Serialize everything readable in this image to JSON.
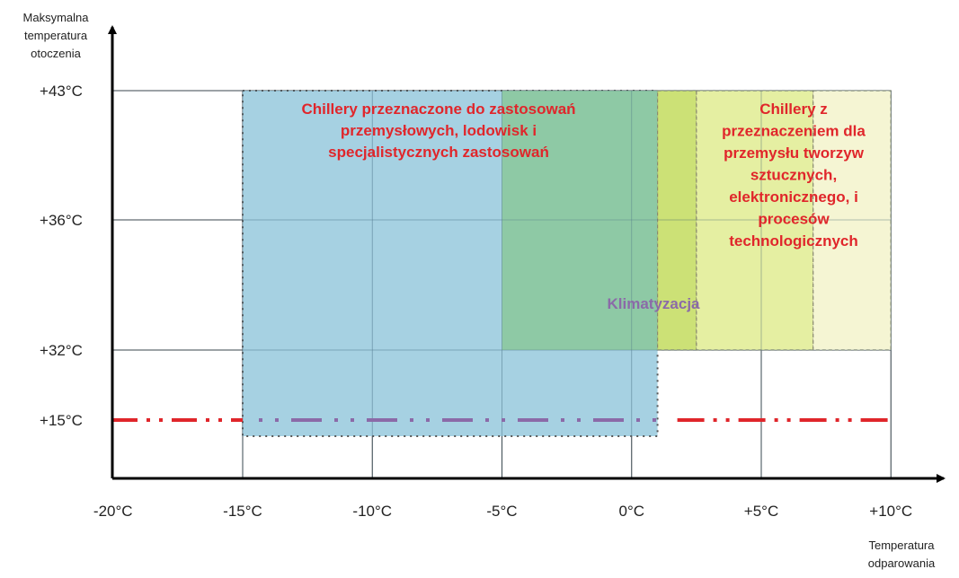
{
  "chart_data": {
    "type": "area",
    "title": "",
    "ylabel_lines": [
      "Maksymalna",
      "temperatura",
      "otoczenia"
    ],
    "xlabel_lines": [
      "Temperatura",
      "odparowania"
    ],
    "x_ticks": [
      {
        "value": -20,
        "label": "-20°C"
      },
      {
        "value": -15,
        "label": "-15°C"
      },
      {
        "value": -10,
        "label": "-10°C"
      },
      {
        "value": -5,
        "label": "-5°C"
      },
      {
        "value": 0,
        "label": "0°C"
      },
      {
        "value": 5,
        "label": "+5°C"
      },
      {
        "value": 10,
        "label": "+10°C"
      }
    ],
    "y_ticks": [
      {
        "value": 15,
        "label": "+15°C"
      },
      {
        "value": 32,
        "label": "+32°C"
      },
      {
        "value": 36,
        "label": "+36°C"
      },
      {
        "value": 43,
        "label": "+43°C"
      }
    ],
    "grid": true,
    "regions": [
      {
        "x_range": [
          -15,
          1
        ],
        "y_range": [
          14,
          43
        ],
        "color": "#9ecde0",
        "border": "dotted",
        "label_lines": [
          "Chillery przeznaczone do zastosowań",
          "przemysłowych, lodowisk i",
          "specjalistycznych zastosowań"
        ],
        "label_color": "#e0262b"
      },
      {
        "x_range": [
          -5,
          1
        ],
        "y_range": [
          32,
          43
        ],
        "color": "#8cc8a0",
        "border": "none",
        "label_lines": [],
        "label_color": "#e0262b"
      },
      {
        "x_range": [
          1,
          2.5
        ],
        "y_range": [
          32,
          43
        ],
        "color": "#c8de6a",
        "border": "dashed",
        "label_lines": [],
        "label_color": "#e0262b"
      },
      {
        "x_range": [
          2.5,
          7
        ],
        "y_range": [
          32,
          43
        ],
        "color": "#e3ee9a",
        "border": "dashed",
        "label_lines": [],
        "label_color": "#e0262b"
      },
      {
        "x_range": [
          7,
          10
        ],
        "y_range": [
          32,
          43
        ],
        "color": "#f4f4cf",
        "border": "dashed",
        "label_lines": [
          "Chillery z",
          "przeznaczeniem dla",
          "przemysłu tworzyw",
          "sztucznych,",
          "elektronicznego, i",
          "procesów",
          "technologicznych"
        ],
        "label_color": "#e0262b"
      }
    ],
    "center_label": {
      "text": "Klimatyzacja",
      "color": "#8b6aa8"
    },
    "reference_line": {
      "y": 15,
      "style": "dash-dot",
      "color": "#e0262b",
      "inner_color": "#8b6aa8"
    }
  }
}
